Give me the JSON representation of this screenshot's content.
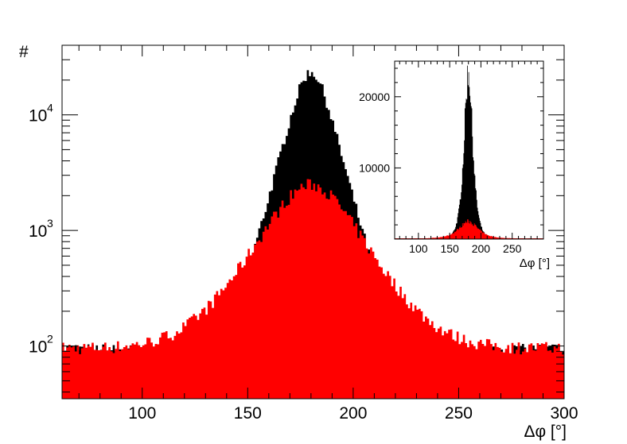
{
  "chart_data": [
    {
      "type": "histogram",
      "scale": "log",
      "xlabel": "Δφ [°]",
      "ylabel": "#",
      "xlim": [
        62,
        300
      ],
      "ylim": [
        35,
        40000
      ],
      "xticks": [
        "100",
        "150",
        "200",
        "250",
        "300"
      ],
      "yticks": [
        {
          "value": 100,
          "base": "10",
          "exp": "2"
        },
        {
          "value": 1000,
          "base": "10",
          "exp": "3"
        },
        {
          "value": 10000,
          "base": "10",
          "exp": "4"
        }
      ],
      "series": [
        {
          "color": "#000000",
          "bin_width": 1,
          "peak": {
            "x": 180,
            "y": 23500
          },
          "tail_level_left": 95,
          "tail_level_right": 95
        },
        {
          "color": "#ff0000",
          "bin_width": 1,
          "peak": {
            "x": 180,
            "y": 2500
          },
          "tail_level_left": 95,
          "tail_level_right": 95
        }
      ]
    },
    {
      "type": "histogram",
      "scale": "linear",
      "xlabel": "Δφ [°]",
      "xlim": [
        62,
        300
      ],
      "ylim": [
        0,
        25000
      ],
      "xticks": [
        "100",
        "150",
        "200",
        "250"
      ],
      "yticks": [
        "10000",
        "20000"
      ],
      "series": [
        {
          "color": "#000000",
          "peak": {
            "x": 180,
            "y": 23500
          }
        },
        {
          "color": "#ff0000",
          "peak": {
            "x": 180,
            "y": 2500
          }
        }
      ]
    }
  ]
}
